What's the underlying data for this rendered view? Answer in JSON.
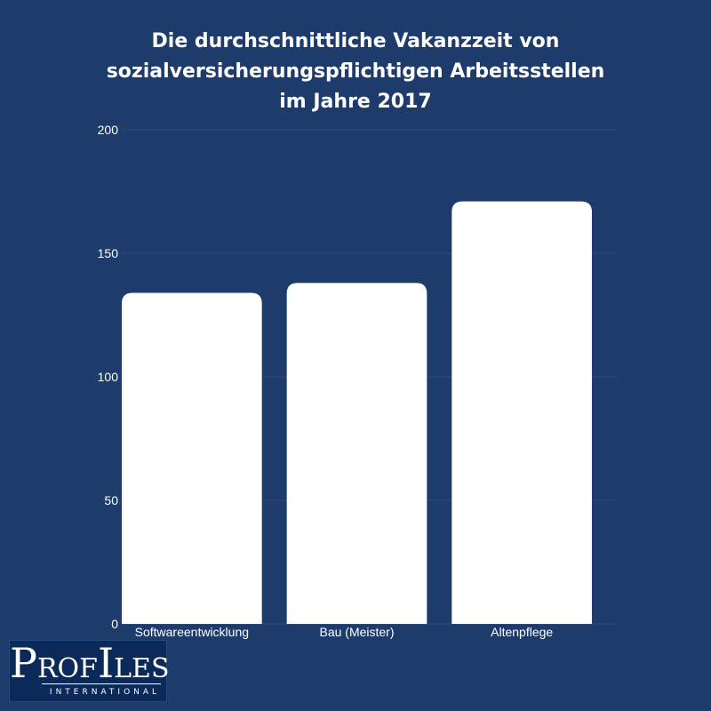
{
  "chart_data": {
    "type": "bar",
    "title_lines": [
      "Die durchschnittliche Vakanzzeit von",
      "sozialversicherungspflichtigen Arbeitsstellen",
      "im Jahre 2017"
    ],
    "categories": [
      "Softwareentwicklung",
      "Bau (Meister)",
      "Altenpflege"
    ],
    "values": [
      134,
      138,
      171
    ],
    "xlabel": "",
    "ylabel": "",
    "ylim": [
      0,
      200
    ],
    "yticks": [
      "0",
      "50",
      "100",
      "150",
      "200"
    ],
    "grid": true,
    "legend": "none",
    "colors": {
      "background": "#1d3c6c",
      "bar": "#ffffff",
      "gridline": "#2b4b7b",
      "text": "#ffffff"
    }
  },
  "logo": {
    "initial_P": "P",
    "rest_ROF": "ROF",
    "initial_I": "I",
    "rest_LES": "LES",
    "subtitle": "INTERNATIONAL"
  }
}
